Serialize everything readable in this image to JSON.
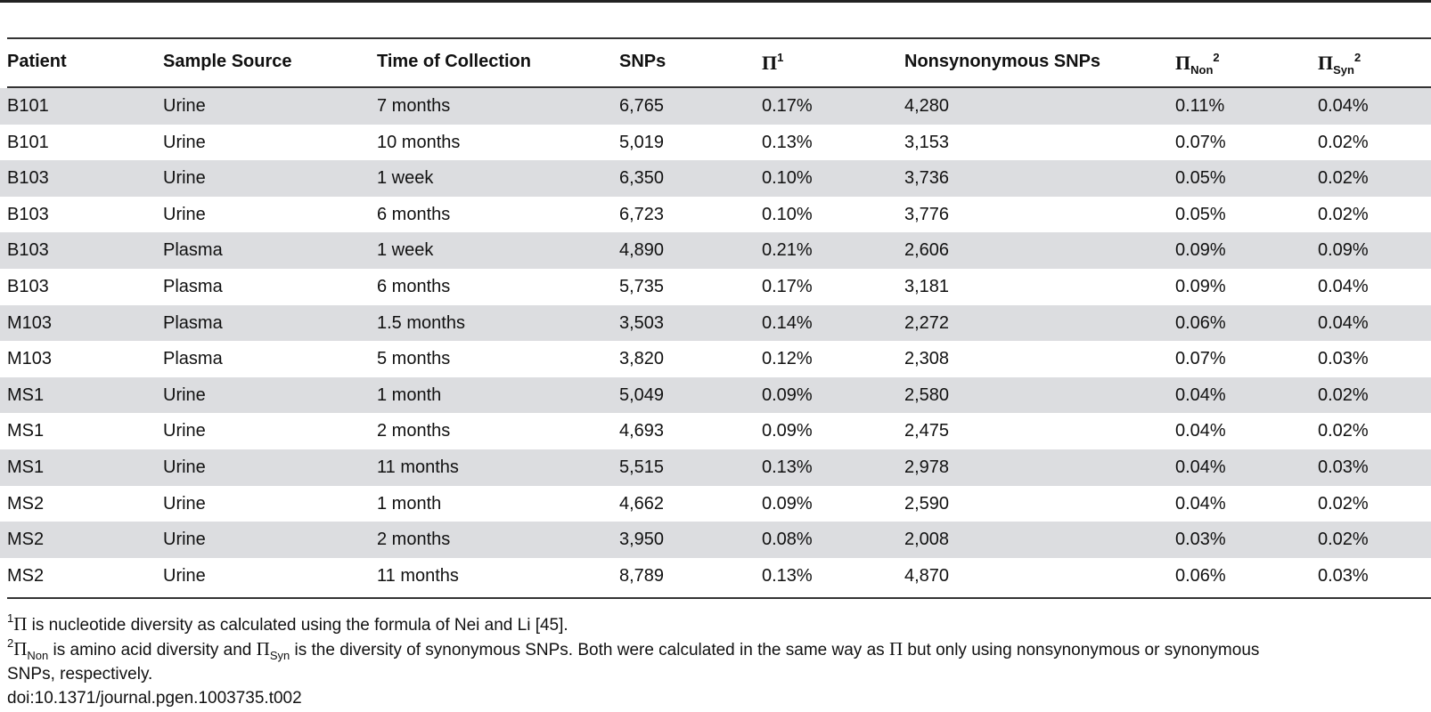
{
  "table": {
    "columns": [
      {
        "label": "Patient"
      },
      {
        "label": "Sample Source"
      },
      {
        "label": "Time of Collection"
      },
      {
        "label": "SNPs"
      },
      {
        "symbol": "Π",
        "sup": "1"
      },
      {
        "label": "Nonsynonymous SNPs"
      },
      {
        "symbol": "Π",
        "sub": "Non",
        "sup": "2"
      },
      {
        "symbol": "Π",
        "sub": "Syn",
        "sup": "2"
      }
    ],
    "rows": [
      [
        "B101",
        "Urine",
        "7 months",
        "6,765",
        "0.17%",
        "4,280",
        "0.11%",
        "0.04%"
      ],
      [
        "B101",
        "Urine",
        "10 months",
        "5,019",
        "0.13%",
        "3,153",
        "0.07%",
        "0.02%"
      ],
      [
        "B103",
        "Urine",
        "1 week",
        "6,350",
        "0.10%",
        "3,736",
        "0.05%",
        "0.02%"
      ],
      [
        "B103",
        "Urine",
        "6 months",
        "6,723",
        "0.10%",
        "3,776",
        "0.05%",
        "0.02%"
      ],
      [
        "B103",
        "Plasma",
        "1 week",
        "4,890",
        "0.21%",
        "2,606",
        "0.09%",
        "0.09%"
      ],
      [
        "B103",
        "Plasma",
        "6 months",
        "5,735",
        "0.17%",
        "3,181",
        "0.09%",
        "0.04%"
      ],
      [
        "M103",
        "Plasma",
        "1.5 months",
        "3,503",
        "0.14%",
        "2,272",
        "0.06%",
        "0.04%"
      ],
      [
        "M103",
        "Plasma",
        "5 months",
        "3,820",
        "0.12%",
        "2,308",
        "0.07%",
        "0.03%"
      ],
      [
        "MS1",
        "Urine",
        "1 month",
        "5,049",
        "0.09%",
        "2,580",
        "0.04%",
        "0.02%"
      ],
      [
        "MS1",
        "Urine",
        "2 months",
        "4,693",
        "0.09%",
        "2,475",
        "0.04%",
        "0.02%"
      ],
      [
        "MS1",
        "Urine",
        "11 months",
        "5,515",
        "0.13%",
        "2,978",
        "0.04%",
        "0.03%"
      ],
      [
        "MS2",
        "Urine",
        "1 month",
        "4,662",
        "0.09%",
        "2,590",
        "0.04%",
        "0.02%"
      ],
      [
        "MS2",
        "Urine",
        "2 months",
        "3,950",
        "0.08%",
        "2,008",
        "0.03%",
        "0.02%"
      ],
      [
        "MS2",
        "Urine",
        "11 months",
        "8,789",
        "0.13%",
        "4,870",
        "0.06%",
        "0.03%"
      ]
    ],
    "shaded_row_color": "#dcdde0"
  },
  "footnotes": {
    "fn1": {
      "mark": "1",
      "symbol": "Π",
      "text": " is nucleotide diversity as calculated using the formula of Nei and Li [45]."
    },
    "fn2": {
      "mark": "2",
      "symbol_a": "Π",
      "sub_a": "Non",
      "text_a": " is amino acid diversity and ",
      "symbol_b": "Π",
      "sub_b": "Syn",
      "text_b": " is the diversity of synonymous SNPs. Both were calculated in the same way as ",
      "symbol_c": "Π",
      "text_c": " but only using nonsynonymous or synonymous",
      "line2": "SNPs, respectively."
    },
    "doi": "doi:10.1371/journal.pgen.1003735.t002"
  }
}
